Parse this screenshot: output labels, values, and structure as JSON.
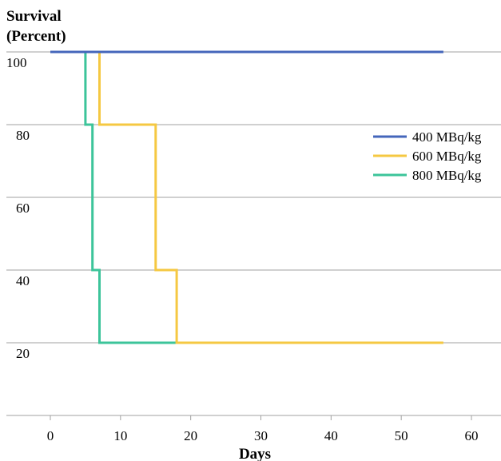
{
  "chart_data": {
    "type": "line",
    "ylabel_lines": [
      "Survival",
      "(Percent)"
    ],
    "xlabel": "Days",
    "x_ticks": [
      "0",
      "10",
      "20",
      "30",
      "40",
      "50",
      "60"
    ],
    "y_ticks": [
      "20",
      "40",
      "60",
      "80",
      "100"
    ],
    "xlim": [
      0,
      60
    ],
    "ylim": [
      0,
      100
    ],
    "grid": "horizontal",
    "legend_position": "right",
    "series": [
      {
        "name": "400 MBq/kg",
        "color": "#4466bb",
        "points": [
          [
            0,
            100
          ],
          [
            56,
            100
          ]
        ]
      },
      {
        "name": "600 MBq/kg",
        "color": "#f5c842",
        "points": [
          [
            7,
            100
          ],
          [
            7,
            80
          ],
          [
            15,
            80
          ],
          [
            15,
            40
          ],
          [
            18,
            40
          ],
          [
            18,
            20
          ],
          [
            56,
            20
          ]
        ]
      },
      {
        "name": "800 MBq/kg",
        "color": "#3cc49a",
        "points": [
          [
            5,
            100
          ],
          [
            5,
            80
          ],
          [
            6,
            80
          ],
          [
            6,
            40
          ],
          [
            7,
            40
          ],
          [
            7,
            20
          ],
          [
            18,
            20
          ]
        ]
      }
    ]
  }
}
